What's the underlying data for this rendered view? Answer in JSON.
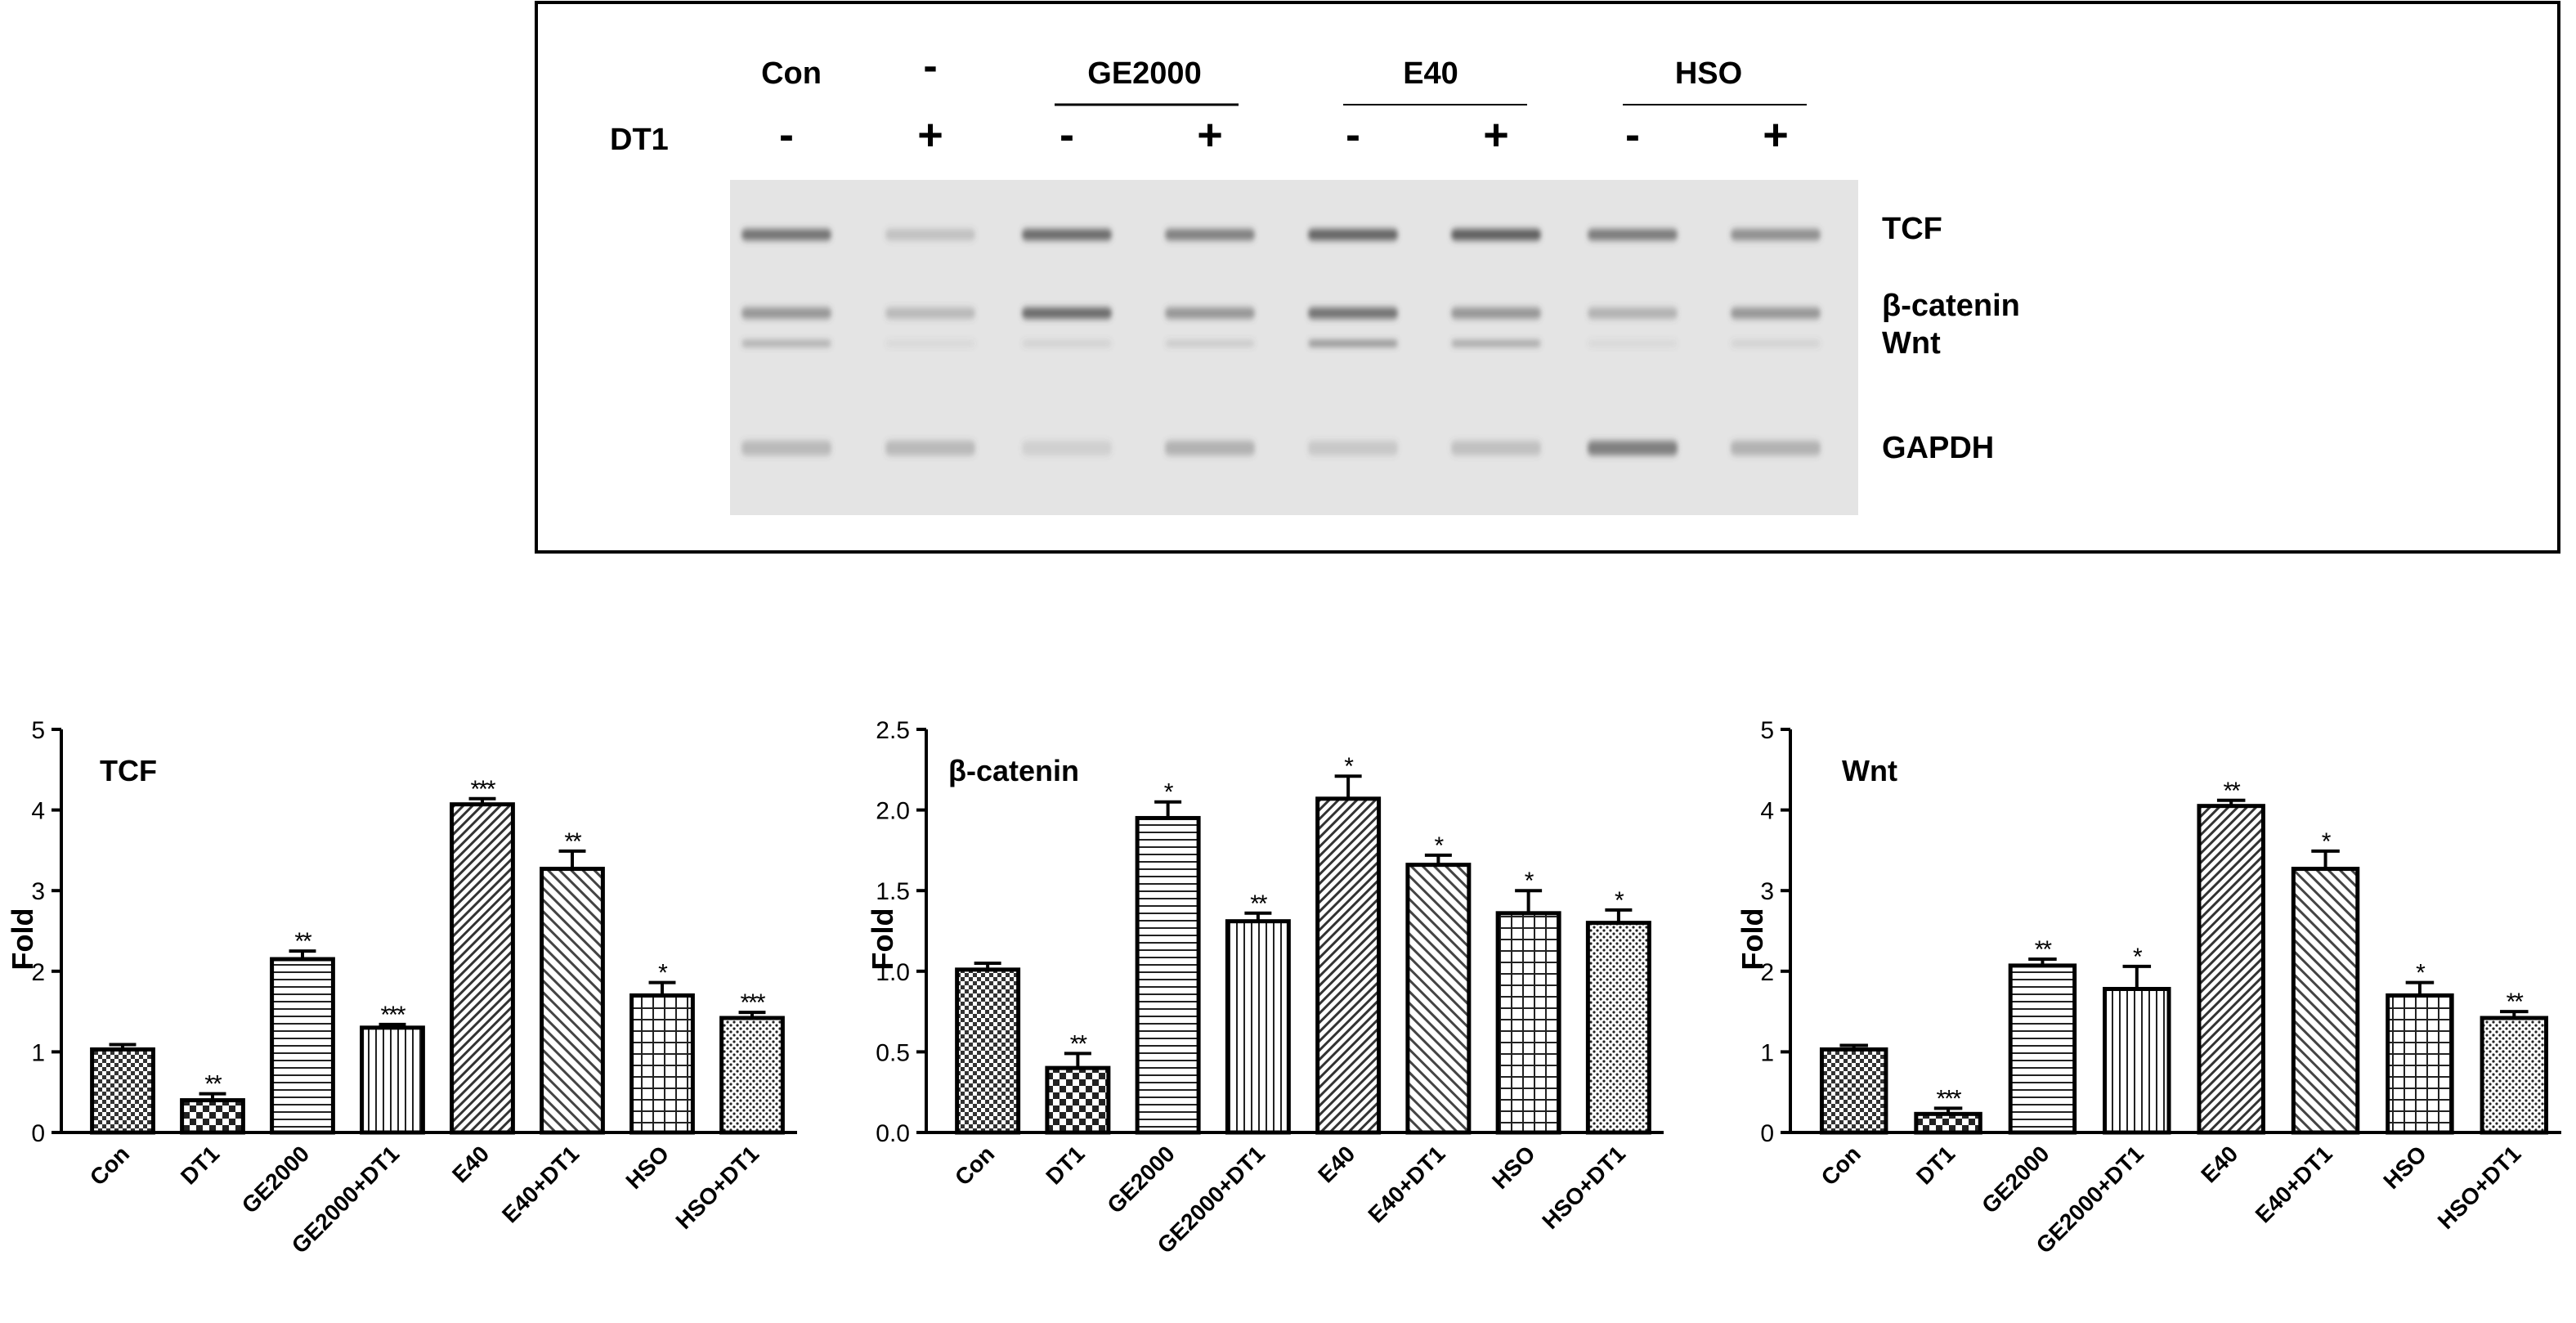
{
  "blot": {
    "row1": {
      "con_label": "Con",
      "dash_label": "-",
      "groups": [
        {
          "label": "GE2000"
        },
        {
          "label": "E40"
        },
        {
          "label": "HSO"
        }
      ]
    },
    "dt1_label": "DT1",
    "dt1_signs": [
      "-",
      "+",
      "-",
      "+",
      "-",
      "+",
      "-",
      "+"
    ],
    "band_labels": {
      "tcf": "TCF",
      "bcatenin": "β-catenin",
      "wnt": "Wnt",
      "gapdh": "GAPDH"
    },
    "band_intensity": {
      "tcf": [
        0.8,
        0.25,
        0.85,
        0.7,
        0.9,
        0.95,
        0.75,
        0.6
      ],
      "bcatenin": [
        0.55,
        0.3,
        0.85,
        0.55,
        0.8,
        0.55,
        0.35,
        0.55
      ],
      "wnt": [
        0.4,
        0.1,
        0.15,
        0.2,
        0.6,
        0.45,
        0.1,
        0.15
      ],
      "gapdh": [
        0.3,
        0.3,
        0.15,
        0.35,
        0.2,
        0.25,
        0.7,
        0.35
      ]
    },
    "colors": {
      "background": "#e4e4e4",
      "band": "#555555"
    }
  },
  "chart_data": [
    {
      "type": "bar",
      "title": "TCF",
      "ylabel": "Fold",
      "ylim": [
        0,
        5
      ],
      "yticks": [
        "0",
        "1",
        "2",
        "3",
        "4",
        "5"
      ],
      "ytick_values": [
        0,
        1,
        2,
        3,
        4,
        5
      ],
      "categories": [
        "Con",
        "DT1",
        "GE2000",
        "GE2000+DT1",
        "E40",
        "E40+DT1",
        "HSO",
        "HSO+DT1"
      ],
      "values": [
        1.03,
        0.4,
        2.15,
        1.3,
        4.07,
        3.27,
        1.7,
        1.42
      ],
      "errors": [
        0.06,
        0.08,
        0.1,
        0.04,
        0.07,
        0.22,
        0.16,
        0.07
      ],
      "significance": [
        "",
        "**",
        "**",
        "***",
        "***",
        "**",
        "*",
        "***"
      ]
    },
    {
      "type": "bar",
      "title": "β-catenin",
      "ylabel": "Fold",
      "ylim": [
        0,
        2.5
      ],
      "yticks": [
        "0.0",
        "0.5",
        "1.0",
        "1.5",
        "2.0",
        "2.5"
      ],
      "ytick_values": [
        0,
        0.5,
        1.0,
        1.5,
        2.0,
        2.5
      ],
      "categories": [
        "Con",
        "DT1",
        "GE2000",
        "GE2000+DT1",
        "E40",
        "E40+DT1",
        "HSO",
        "HSO+DT1"
      ],
      "values": [
        1.01,
        0.4,
        1.95,
        1.31,
        2.07,
        1.66,
        1.36,
        1.3
      ],
      "errors": [
        0.04,
        0.09,
        0.1,
        0.05,
        0.14,
        0.06,
        0.14,
        0.08
      ],
      "significance": [
        "",
        "**",
        "*",
        "**",
        "*",
        "*",
        "*",
        "*"
      ]
    },
    {
      "type": "bar",
      "title": "Wnt",
      "ylabel": "Fold",
      "ylim": [
        0,
        5
      ],
      "yticks": [
        "0",
        "1",
        "2",
        "3",
        "4",
        "5"
      ],
      "ytick_values": [
        0,
        1,
        2,
        3,
        4,
        5
      ],
      "categories": [
        "Con",
        "DT1",
        "GE2000",
        "GE2000+DT1",
        "E40",
        "E40+DT1",
        "HSO",
        "HSO+DT1"
      ],
      "values": [
        1.03,
        0.23,
        2.07,
        1.78,
        4.05,
        3.27,
        1.7,
        1.42
      ],
      "errors": [
        0.05,
        0.07,
        0.08,
        0.28,
        0.07,
        0.22,
        0.16,
        0.08
      ],
      "significance": [
        "",
        "***",
        "**",
        "*",
        "**",
        "*",
        "*",
        "**"
      ]
    }
  ],
  "bar_patterns": [
    "checker",
    "checker-large",
    "hlines",
    "vlines",
    "diag-fine",
    "diag-coarse",
    "grid",
    "dots"
  ]
}
